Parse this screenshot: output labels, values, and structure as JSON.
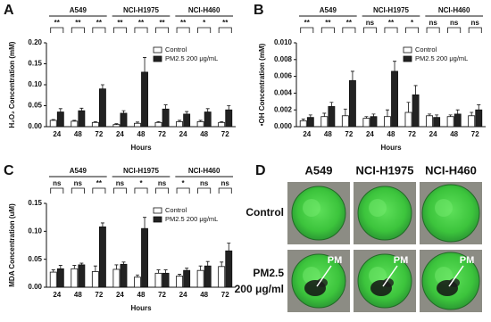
{
  "chart_data": [
    {
      "type": "bar",
      "panel": "A",
      "ylabel": "H₂O₂ Concentration (mM)",
      "xlabel": "Hours",
      "groups": [
        "A549",
        "NCI-H1975",
        "NCI-H460"
      ],
      "categories": [
        "24",
        "48",
        "72",
        "24",
        "48",
        "72",
        "24",
        "48",
        "72"
      ],
      "significance": [
        "**",
        "**",
        "**",
        "**",
        "**",
        "**",
        "**",
        "*",
        "**"
      ],
      "series": [
        {
          "name": "Control",
          "color": "#ffffff",
          "values": [
            0.015,
            0.013,
            0.01,
            0.005,
            0.008,
            0.01,
            0.012,
            0.012,
            0.01
          ],
          "errors": [
            0.002,
            0.002,
            0.002,
            0.002,
            0.003,
            0.002,
            0.003,
            0.003,
            0.002
          ]
        },
        {
          "name": "PM2.5 200 μg/mL",
          "color": "#222222",
          "values": [
            0.035,
            0.038,
            0.09,
            0.032,
            0.13,
            0.042,
            0.03,
            0.035,
            0.04
          ],
          "errors": [
            0.008,
            0.006,
            0.01,
            0.006,
            0.035,
            0.01,
            0.006,
            0.008,
            0.01
          ]
        }
      ],
      "ylim": [
        0,
        0.2
      ],
      "yticks": [
        {
          "value": 0,
          "label": "0.00"
        },
        {
          "value": 0.05,
          "label": "0.05"
        },
        {
          "value": 0.1,
          "label": "0.10"
        },
        {
          "value": 0.15,
          "label": "0.15"
        },
        {
          "value": 0.2,
          "label": "0.20"
        }
      ],
      "legend": "upper right",
      "grid": false
    },
    {
      "type": "bar",
      "panel": "B",
      "ylabel": "•OH Concentration (mM)",
      "xlabel": "Hours",
      "groups": [
        "A549",
        "NCI-H1975",
        "NCI-H460"
      ],
      "categories": [
        "24",
        "48",
        "72",
        "24",
        "48",
        "72",
        "24",
        "48",
        "72"
      ],
      "significance": [
        "**",
        "**",
        "**",
        "ns",
        "**",
        "*",
        "ns",
        "ns",
        "ns"
      ],
      "series": [
        {
          "name": "Control",
          "color": "#ffffff",
          "values": [
            0.0007,
            0.0012,
            0.0013,
            0.001,
            0.0012,
            0.0017,
            0.0013,
            0.0012,
            0.0013
          ],
          "errors": [
            0.0002,
            0.0004,
            0.0008,
            0.0002,
            0.0008,
            0.0012,
            0.0002,
            0.0002,
            0.0004
          ]
        },
        {
          "name": "PM2.5 200 μg/mL",
          "color": "#222222",
          "values": [
            0.0011,
            0.0024,
            0.0055,
            0.0012,
            0.0066,
            0.0038,
            0.0011,
            0.0015,
            0.002
          ],
          "errors": [
            0.0003,
            0.0005,
            0.0011,
            0.0003,
            0.0012,
            0.0011,
            0.0003,
            0.0005,
            0.0006
          ]
        }
      ],
      "ylim": [
        0,
        0.01
      ],
      "yticks": [
        {
          "value": 0,
          "label": "0.000"
        },
        {
          "value": 0.002,
          "label": "0.002"
        },
        {
          "value": 0.004,
          "label": "0.004"
        },
        {
          "value": 0.006,
          "label": "0.006"
        },
        {
          "value": 0.008,
          "label": "0.008"
        },
        {
          "value": 0.01,
          "label": "0.010"
        }
      ],
      "legend": "upper right",
      "grid": false
    },
    {
      "type": "bar",
      "panel": "C",
      "ylabel": "MDA Concentration (uM)",
      "xlabel": "Hours",
      "groups": [
        "A549",
        "NCI-H1975",
        "NCI-H460"
      ],
      "categories": [
        "24",
        "48",
        "72",
        "24",
        "48",
        "72",
        "24",
        "48",
        "72"
      ],
      "significance": [
        "ns",
        "ns",
        "**",
        "ns",
        "*",
        "ns",
        "*",
        "ns",
        "ns"
      ],
      "series": [
        {
          "name": "Control",
          "color": "#ffffff",
          "values": [
            0.027,
            0.033,
            0.028,
            0.032,
            0.018,
            0.025,
            0.02,
            0.03,
            0.037
          ],
          "errors": [
            0.004,
            0.006,
            0.01,
            0.008,
            0.004,
            0.006,
            0.003,
            0.008,
            0.008
          ]
        },
        {
          "name": "PM2.5 200 μg/mL",
          "color": "#222222",
          "values": [
            0.033,
            0.04,
            0.108,
            0.041,
            0.105,
            0.025,
            0.03,
            0.038,
            0.065
          ],
          "errors": [
            0.006,
            0.003,
            0.007,
            0.004,
            0.02,
            0.006,
            0.004,
            0.008,
            0.014
          ]
        }
      ],
      "ylim": [
        0,
        0.15
      ],
      "yticks": [
        {
          "value": 0,
          "label": "0.00"
        },
        {
          "value": 0.05,
          "label": "0.05"
        },
        {
          "value": 0.1,
          "label": "0.10"
        },
        {
          "value": 0.15,
          "label": "0.15"
        }
      ],
      "legend": "upper right",
      "grid": false
    }
  ],
  "micrograph_panel": {
    "panel": "D",
    "columns": [
      "A549",
      "NCI-H1975",
      "NCI-H460"
    ],
    "rows": [
      [
        "Control"
      ],
      [
        "PM2.5",
        "200 μg/ml"
      ]
    ],
    "annotations": [
      "PM",
      "PM",
      "PM"
    ]
  }
}
